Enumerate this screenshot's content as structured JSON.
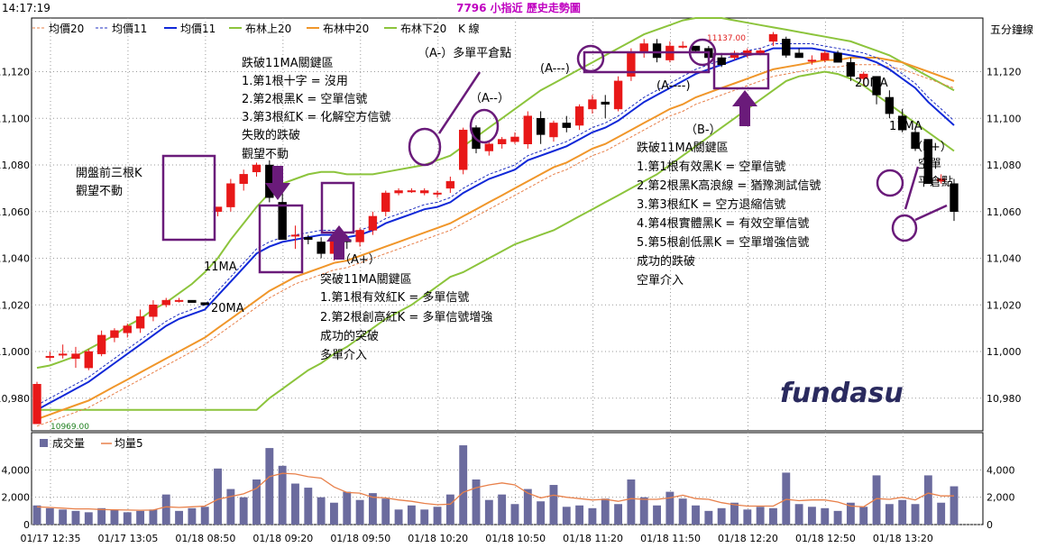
{
  "header": {
    "time": "14:17:19",
    "title": "7796 小指近 歷史走勢圖",
    "legend": [
      {
        "label": "均價20",
        "color": "#e8804a",
        "style": "dash"
      },
      {
        "label": "均價11",
        "color": "#2030c0",
        "style": "dash"
      },
      {
        "label": "均價11",
        "color": "#1028d8",
        "style": "solid"
      },
      {
        "label": "布林上20",
        "color": "#8cc43c",
        "style": "solid"
      },
      {
        "label": "布林中20",
        "color": "#f0962a",
        "style": "solid"
      },
      {
        "label": "布林下20",
        "color": "#8cc43c",
        "style": "solid"
      }
    ],
    "k_label": "K 線",
    "right_label": "五分鐘線"
  },
  "watermark": "fundasu",
  "chart_data": {
    "type": "candlestick",
    "price_axis": {
      "ticks": [
        10980,
        11000,
        11020,
        11040,
        11060,
        11080,
        11100,
        11120
      ],
      "labels": [
        "10,980",
        "11,000",
        "11,020",
        "11,040",
        "11,060",
        "11,080",
        "11,100",
        "11,120"
      ],
      "range": [
        10966,
        11143
      ]
    },
    "volume_axis": {
      "ticks": [
        0,
        2000,
        4000
      ],
      "labels": [
        "0",
        "2,000",
        "4,000"
      ],
      "range": [
        0,
        6200
      ]
    },
    "time_labels": [
      "01/17 12:35",
      "01/17 13:05",
      "01/18 08:50",
      "01/18 09:20",
      "01/18 09:50",
      "01/18 10:20",
      "01/18 10:50",
      "01/18 11:20",
      "01/18 11:50",
      "01/18 12:20",
      "01/18 12:50",
      "01/18 13:20"
    ],
    "time_label_index": [
      0,
      6,
      12,
      18,
      24,
      30,
      36,
      42,
      48,
      54,
      60,
      66
    ],
    "candles": [
      {
        "o": 10969,
        "h": 10987,
        "l": 10969,
        "c": 10986
      },
      {
        "o": 10998,
        "h": 11000,
        "l": 10996,
        "c": 10998
      },
      {
        "o": 10999,
        "h": 11003,
        "l": 10997,
        "c": 10999
      },
      {
        "o": 10997,
        "h": 11002,
        "l": 10993,
        "c": 10999
      },
      {
        "o": 10993,
        "h": 11001,
        "l": 10992,
        "c": 11000
      },
      {
        "o": 10999,
        "h": 11009,
        "l": 10998,
        "c": 11007
      },
      {
        "o": 11006,
        "h": 11010,
        "l": 11004,
        "c": 11009
      },
      {
        "o": 11008,
        "h": 11012,
        "l": 11006,
        "c": 11011
      },
      {
        "o": 11010,
        "h": 11018,
        "l": 11008,
        "c": 11015
      },
      {
        "o": 11015,
        "h": 11022,
        "l": 11013,
        "c": 11020
      },
      {
        "o": 11020,
        "h": 11023,
        "l": 11019,
        "c": 11022
      },
      {
        "o": 11022,
        "h": 11023,
        "l": 11021,
        "c": 11022
      },
      {
        "o": 11022,
        "h": 11022,
        "l": 11021,
        "c": 11021
      },
      {
        "o": 11021,
        "h": 11021,
        "l": 11020,
        "c": 11020
      },
      {
        "o": 11060,
        "h": 11062,
        "l": 11058,
        "c": 11062
      },
      {
        "o": 11062,
        "h": 11074,
        "l": 11060,
        "c": 11072
      },
      {
        "o": 11072,
        "h": 11078,
        "l": 11069,
        "c": 11076
      },
      {
        "o": 11077,
        "h": 11081,
        "l": 11075,
        "c": 11080
      },
      {
        "o": 11080,
        "h": 11082,
        "l": 11064,
        "c": 11066
      },
      {
        "o": 11064,
        "h": 11072,
        "l": 11048,
        "c": 11048
      },
      {
        "o": 11050,
        "h": 11054,
        "l": 11044,
        "c": 11050
      },
      {
        "o": 11049,
        "h": 11050,
        "l": 11046,
        "c": 11048
      },
      {
        "o": 11047,
        "h": 11049,
        "l": 11040,
        "c": 11042
      },
      {
        "o": 11042,
        "h": 11050,
        "l": 11039,
        "c": 11049
      },
      {
        "o": 11048,
        "h": 11050,
        "l": 11044,
        "c": 11047
      },
      {
        "o": 11047,
        "h": 11053,
        "l": 11045,
        "c": 11052
      },
      {
        "o": 11052,
        "h": 11060,
        "l": 11050,
        "c": 11058
      },
      {
        "o": 11060,
        "h": 11069,
        "l": 11058,
        "c": 11068
      },
      {
        "o": 11068,
        "h": 11070,
        "l": 11067,
        "c": 11069
      },
      {
        "o": 11069,
        "h": 11070,
        "l": 11068,
        "c": 11069
      },
      {
        "o": 11068,
        "h": 11070,
        "l": 11067,
        "c": 11069
      },
      {
        "o": 11068,
        "h": 11069,
        "l": 11066,
        "c": 11068
      },
      {
        "o": 11070,
        "h": 11075,
        "l": 11068,
        "c": 11073
      },
      {
        "o": 11078,
        "h": 11096,
        "l": 11076,
        "c": 11095
      },
      {
        "o": 11096,
        "h": 11097,
        "l": 11085,
        "c": 11087
      },
      {
        "o": 11086,
        "h": 11090,
        "l": 11084,
        "c": 11089
      },
      {
        "o": 11089,
        "h": 11092,
        "l": 11087,
        "c": 11091
      },
      {
        "o": 11090,
        "h": 11094,
        "l": 11089,
        "c": 11092
      },
      {
        "o": 11089,
        "h": 11103,
        "l": 11087,
        "c": 11101
      },
      {
        "o": 11100,
        "h": 11103,
        "l": 11089,
        "c": 11093
      },
      {
        "o": 11092,
        "h": 11099,
        "l": 11090,
        "c": 11098
      },
      {
        "o": 11098,
        "h": 11101,
        "l": 11094,
        "c": 11096
      },
      {
        "o": 11097,
        "h": 11106,
        "l": 11095,
        "c": 11105
      },
      {
        "o": 11104,
        "h": 11110,
        "l": 11102,
        "c": 11108
      },
      {
        "o": 11107,
        "h": 11110,
        "l": 11100,
        "c": 11106
      },
      {
        "o": 11104,
        "h": 11118,
        "l": 11103,
        "c": 11116
      },
      {
        "o": 11118,
        "h": 11130,
        "l": 11116,
        "c": 11128
      },
      {
        "o": 11128,
        "h": 11134,
        "l": 11126,
        "c": 11132
      },
      {
        "o": 11132,
        "h": 11134,
        "l": 11124,
        "c": 11126
      },
      {
        "o": 11125,
        "h": 11133,
        "l": 11124,
        "c": 11131
      },
      {
        "o": 11131,
        "h": 11133,
        "l": 11130,
        "c": 11131
      },
      {
        "o": 11131,
        "h": 11131,
        "l": 11128,
        "c": 11129
      },
      {
        "o": 11130,
        "h": 11131,
        "l": 11124,
        "c": 11126
      },
      {
        "o": 11126,
        "h": 11128,
        "l": 11122,
        "c": 11123
      },
      {
        "o": 11126,
        "h": 11129,
        "l": 11125,
        "c": 11128
      },
      {
        "o": 11127,
        "h": 11130,
        "l": 11126,
        "c": 11129
      },
      {
        "o": 11128,
        "h": 11130,
        "l": 11127,
        "c": 11129
      },
      {
        "o": 11133,
        "h": 11137,
        "l": 11131,
        "c": 11136
      },
      {
        "o": 11134,
        "h": 11135,
        "l": 11126,
        "c": 11127
      },
      {
        "o": 11128,
        "h": 11130,
        "l": 11126,
        "c": 11126
      },
      {
        "o": 11125,
        "h": 11127,
        "l": 11123,
        "c": 11125
      },
      {
        "o": 11125,
        "h": 11129,
        "l": 11124,
        "c": 11128
      },
      {
        "o": 11128,
        "h": 11129,
        "l": 11124,
        "c": 11124
      },
      {
        "o": 11124,
        "h": 11126,
        "l": 11116,
        "c": 11118
      },
      {
        "o": 11117,
        "h": 11120,
        "l": 11114,
        "c": 11119
      },
      {
        "o": 11118,
        "h": 11118,
        "l": 11106,
        "c": 11110
      },
      {
        "o": 11109,
        "h": 11112,
        "l": 11100,
        "c": 11102
      },
      {
        "o": 11101,
        "h": 11104,
        "l": 11094,
        "c": 11095
      },
      {
        "o": 11094,
        "h": 11096,
        "l": 11086,
        "c": 11087
      },
      {
        "o": 11091,
        "h": 11091,
        "l": 11072,
        "c": 11072
      },
      {
        "o": 11073,
        "h": 11076,
        "l": 11072,
        "c": 11074
      },
      {
        "o": 11072,
        "h": 11074,
        "l": 11056,
        "c": 11060
      }
    ],
    "ma11": [
      10975,
      10978,
      10981,
      10984,
      10987,
      10991,
      10995,
      10999,
      11003,
      11007,
      11011,
      11014,
      11016,
      11018,
      11024,
      11030,
      11036,
      11042,
      11045,
      11047,
      11048,
      11049,
      11050,
      11050,
      11049,
      11050,
      11052,
      11055,
      11057,
      11059,
      11061,
      11062,
      11064,
      11068,
      11071,
      11074,
      11076,
      11078,
      11082,
      11084,
      11086,
      11088,
      11091,
      11094,
      11096,
      11099,
      11103,
      11107,
      11110,
      11113,
      11116,
      11119,
      11121,
      11123,
      11125,
      11127,
      11128,
      11130,
      11130,
      11130,
      11130,
      11129,
      11128,
      11127,
      11126,
      11124,
      11121,
      11117,
      11113,
      11107,
      11102,
      11097
    ],
    "ma20": [
      10971,
      10973,
      10975,
      10977,
      10979,
      10982,
      10985,
      10988,
      10991,
      10994,
      10997,
      11000,
      11003,
      11006,
      11010,
      11014,
      11018,
      11022,
      11026,
      11029,
      11032,
      11034,
      11036,
      11038,
      11039,
      11041,
      11043,
      11045,
      11047,
      11049,
      11051,
      11053,
      11055,
      11058,
      11061,
      11064,
      11067,
      11070,
      11073,
      11076,
      11079,
      11081,
      11084,
      11087,
      11089,
      11092,
      11095,
      11098,
      11101,
      11104,
      11106,
      11109,
      11111,
      11113,
      11115,
      11117,
      11119,
      11121,
      11122,
      11123,
      11124,
      11125,
      11125,
      11126,
      11126,
      11126,
      11125,
      11124,
      11122,
      11120,
      11118,
      11116
    ],
    "boll_upper": [
      10993,
      10994,
      10996,
      10998,
      11001,
      11004,
      11007,
      11011,
      11014,
      11018,
      11021,
      11025,
      11029,
      11034,
      11040,
      11048,
      11055,
      11062,
      11068,
      11072,
      11074,
      11076,
      11077,
      11077,
      11076,
      11076,
      11076,
      11077,
      11078,
      11079,
      11080,
      11082,
      11084,
      11088,
      11092,
      11096,
      11100,
      11104,
      11108,
      11112,
      11115,
      11118,
      11121,
      11124,
      11127,
      11130,
      11133,
      11136,
      11138,
      11140,
      11142,
      11143,
      11143,
      11143,
      11142,
      11141,
      11140,
      11139,
      11138,
      11137,
      11136,
      11135,
      11134,
      11133,
      11131,
      11129,
      11127,
      11124,
      11121,
      11118,
      11115,
      11112
    ],
    "boll_lower": [
      10975,
      10975,
      10975,
      10975,
      10975,
      10975,
      10975,
      10975,
      10975,
      10975,
      10975,
      10975,
      10975,
      10975,
      10975,
      10975,
      10975,
      10975,
      10980,
      10984,
      10988,
      10992,
      10995,
      10999,
      11002,
      11006,
      11010,
      11014,
      11017,
      11020,
      11024,
      11028,
      11032,
      11034,
      11037,
      11040,
      11043,
      11046,
      11048,
      11050,
      11052,
      11055,
      11058,
      11061,
      11064,
      11067,
      11070,
      11073,
      11076,
      11080,
      11084,
      11088,
      11092,
      11096,
      11100,
      11104,
      11108,
      11112,
      11116,
      11118,
      11119,
      11120,
      11119,
      11117,
      11114,
      11110,
      11106,
      11102,
      11098,
      11094,
      11090,
      11086
    ],
    "volume": [
      1400,
      1200,
      1100,
      1000,
      900,
      1200,
      1100,
      900,
      1000,
      1100,
      2200,
      1000,
      1200,
      1300,
      4100,
      2600,
      2000,
      3300,
      5600,
      4300,
      3000,
      2700,
      2000,
      1600,
      2400,
      1800,
      2300,
      1900,
      1100,
      1400,
      1100,
      1300,
      2200,
      5800,
      3300,
      1800,
      2200,
      1500,
      2600,
      1700,
      2900,
      1300,
      1400,
      1200,
      1900,
      1500,
      3300,
      2000,
      1400,
      2400,
      1900,
      1400,
      1000,
      1200,
      1600,
      1100,
      1300,
      1200,
      3800,
      1500,
      1300,
      1200,
      1000,
      1600,
      1300,
      3600,
      1500,
      1800,
      1500,
      3600,
      1600,
      2800
    ],
    "volume_ma5": [
      1300,
      1250,
      1200,
      1150,
      1150,
      1100,
      1080,
      1060,
      1050,
      1060,
      1300,
      1250,
      1300,
      1350,
      1850,
      2050,
      2250,
      2650,
      3500,
      3750,
      3700,
      3500,
      3400,
      2750,
      2350,
      2300,
      2000,
      1950,
      1800,
      1700,
      1550,
      1450,
      1500,
      2360,
      2700,
      2900,
      3050,
      2900,
      2300,
      1950,
      2150,
      2000,
      1900,
      1800,
      1850,
      1700,
      1900,
      1850,
      1850,
      1950,
      2150,
      1900,
      1850,
      1600,
      1450,
      1350,
      1350,
      1350,
      1850,
      1750,
      1800,
      1800,
      1650,
      1350,
      1300,
      1900,
      1850,
      2000,
      1800,
      2300,
      2100,
      2100
    ],
    "price_labels": {
      "high": "11137.00",
      "low": "10969.00"
    }
  },
  "annotations": {
    "premarket": {
      "lines": [
        "開盤前三根K",
        "觀望不動"
      ]
    },
    "breakdown_top": {
      "lines": [
        "跌破11MA關鍵區",
        "1.第1根十字 = 沒用",
        "2.第2根黑K = 空單信號",
        "3.第3根紅K = 化解空方信號",
        "失敗的跌破",
        "觀望不動"
      ]
    },
    "ma11_left": "11MA",
    "ma20_left": "20MA",
    "a_plus": "（A+）",
    "breakout": {
      "lines": [
        "突破11MA關鍵區",
        "1.第1根有效紅K = 多單信號",
        "2.第2根創高紅K = 多單信號增強",
        "成功的突破",
        "多單介入"
      ]
    },
    "a_minus_close": "（A-）多單平倉點",
    "a_minus_1": "（A--）",
    "a_minus_2": "(A---)",
    "a_minus_3": "(A----)",
    "b_minus": "（B-）",
    "breakdown_right": {
      "lines": [
        "跌破11MA關鍵區",
        "1.第1根有效黑K = 空單信號",
        "2.第2根黑K高浪線 = 猶豫測試信號",
        "3.第3根紅K = 空方退縮信號",
        "4.第4根實體黑K = 有效空單信號",
        "5.第5根創低黑K = 空單增強信號",
        "成功的跌破",
        "空單介入"
      ]
    },
    "ma20_right": "20MA",
    "ma11_right": "11MA",
    "b_plus": "（B+）",
    "b_plus_close": [
      "空單",
      "平倉點"
    ]
  },
  "volume_legend": [
    {
      "label": "成交量",
      "color": "#6b6b9e"
    },
    {
      "label": "均量5",
      "color": "#e8804a"
    }
  ]
}
